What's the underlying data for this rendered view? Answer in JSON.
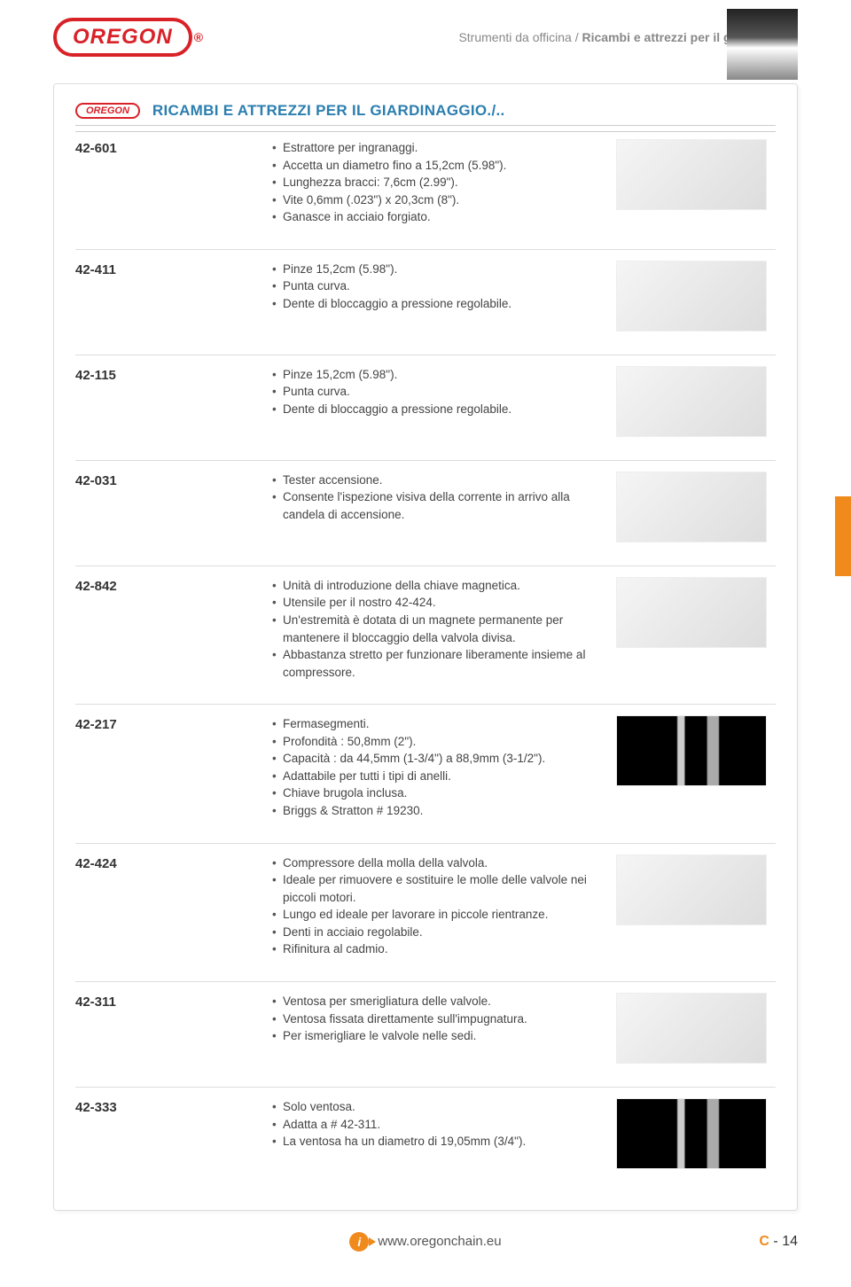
{
  "brand": "OREGON",
  "breadcrumb_prefix": "Strumenti da officina / ",
  "breadcrumb_strong": "Ricambi e attrezzi per il giardinaggio",
  "section_title": "RICAMBI E ATTREZZI PER IL GIARDINAGGIO./..",
  "footer_url": "www.oregonchain.eu",
  "page_letter": "C",
  "page_sep": " - ",
  "page_number": "14",
  "colors": {
    "brand_red": "#d92128",
    "section_blue": "#2b7eaf",
    "accent_orange": "#f08a1d"
  },
  "products": [
    {
      "sku": "42-601",
      "image_style": "placeholder",
      "items": [
        "Estrattore per ingranaggi.",
        "Accetta un diametro fino a 15,2cm (5.98\").",
        "Lunghezza bracci: 7,6cm (2.99\").",
        "Vite 0,6mm (.023\") x 20,3cm (8\").",
        "Ganasce in acciaio forgiato."
      ]
    },
    {
      "sku": "42-411",
      "image_style": "placeholder",
      "items": [
        "Pinze 15,2cm (5.98\").",
        "Punta curva.",
        "Dente di bloccaggio a pressione regolabile."
      ]
    },
    {
      "sku": "42-115",
      "image_style": "placeholder",
      "items": [
        "Pinze 15,2cm (5.98\").",
        "Punta curva.",
        "Dente di bloccaggio a pressione regolabile."
      ]
    },
    {
      "sku": "42-031",
      "image_style": "placeholder",
      "items": [
        "Tester accensione.",
        "Consente l'ispezione visiva della corrente in arrivo alla candela di accensione."
      ]
    },
    {
      "sku": "42-842",
      "image_style": "placeholder",
      "items": [
        "Unità di introduzione della chiave magnetica.",
        "Utensile per il nostro 42-424.",
        "Un'estremità è dotata di un magnete permanente per mantenere il bloccaggio della valvola divisa.",
        "Abbastanza stretto per funzionare liberamente insieme al compressore."
      ]
    },
    {
      "sku": "42-217",
      "image_style": "placeholder dark",
      "items": [
        "Fermasegmenti.",
        "Profondità : 50,8mm (2\").",
        "Capacità : da 44,5mm (1-3/4\") a 88,9mm (3-1/2\").",
        "Adattabile per tutti i tipi di anelli.",
        "Chiave brugola inclusa.",
        "Briggs & Stratton # 19230."
      ]
    },
    {
      "sku": "42-424",
      "image_style": "placeholder",
      "items": [
        "Compressore della molla della valvola.",
        "Ideale per rimuovere e sostituire le molle delle valvole nei piccoli motori.",
        "Lungo ed ideale per lavorare in piccole rientranze.",
        "Denti in acciaio regolabile.",
        "Rifinitura al cadmio."
      ]
    },
    {
      "sku": "42-311",
      "image_style": "placeholder",
      "items": [
        "Ventosa per smerigliatura delle valvole.",
        "Ventosa fissata direttamente sull'impugnatura.",
        "Per ismerigliare le valvole nelle sedi."
      ]
    },
    {
      "sku": "42-333",
      "image_style": "placeholder dark",
      "items": [
        "Solo ventosa.",
        "Adatta a # 42-311.",
        "La ventosa ha un diametro di 19,05mm (3/4\")."
      ]
    }
  ]
}
